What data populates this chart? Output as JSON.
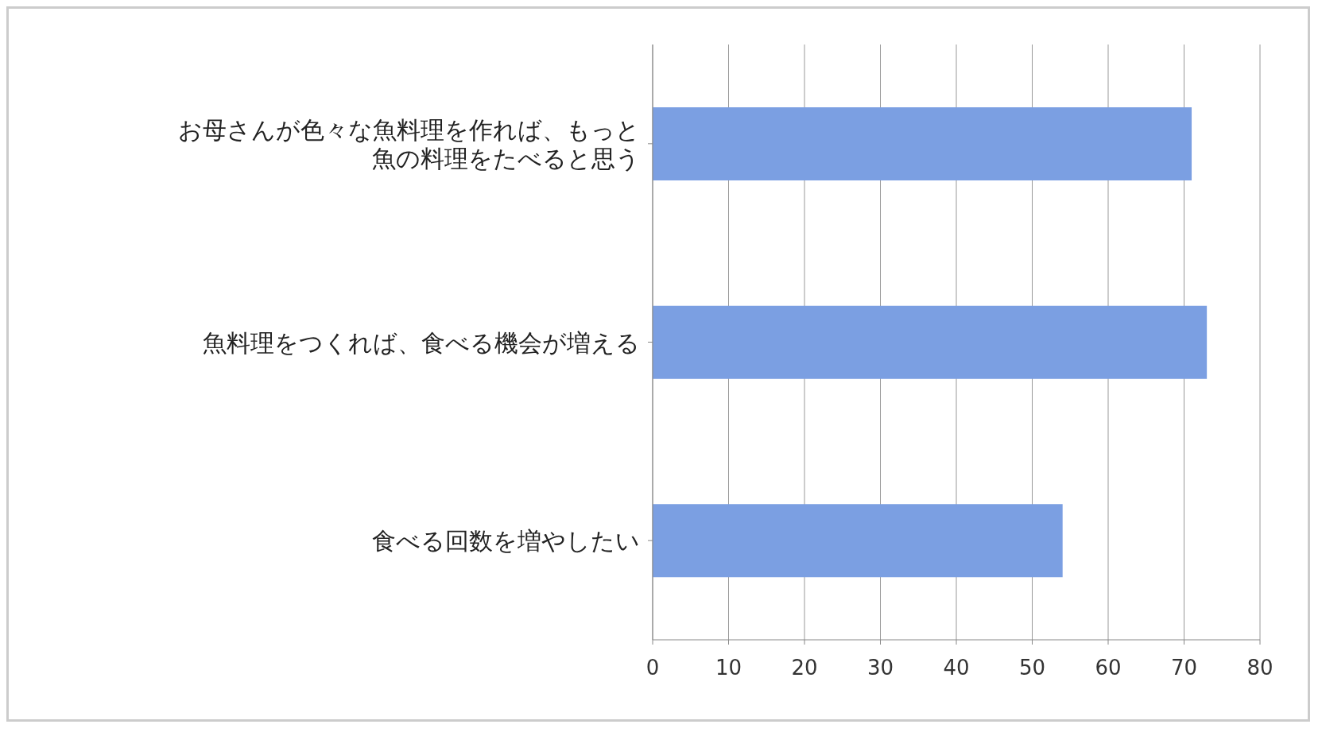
{
  "chart_data": {
    "type": "bar",
    "orientation": "horizontal",
    "categories": [
      "お母さんが色々な魚料理を作れば、もっと魚の料理をたべると思う",
      "魚料理をつくれば、食べる機会が増える",
      "食べる回数を増やしたい"
    ],
    "values": [
      71,
      73,
      54
    ],
    "color": "#7b9fe2",
    "xlim": [
      0,
      80
    ],
    "xticks": [
      0,
      10,
      20,
      30,
      40,
      50,
      60,
      70,
      80
    ],
    "grid": "x"
  }
}
